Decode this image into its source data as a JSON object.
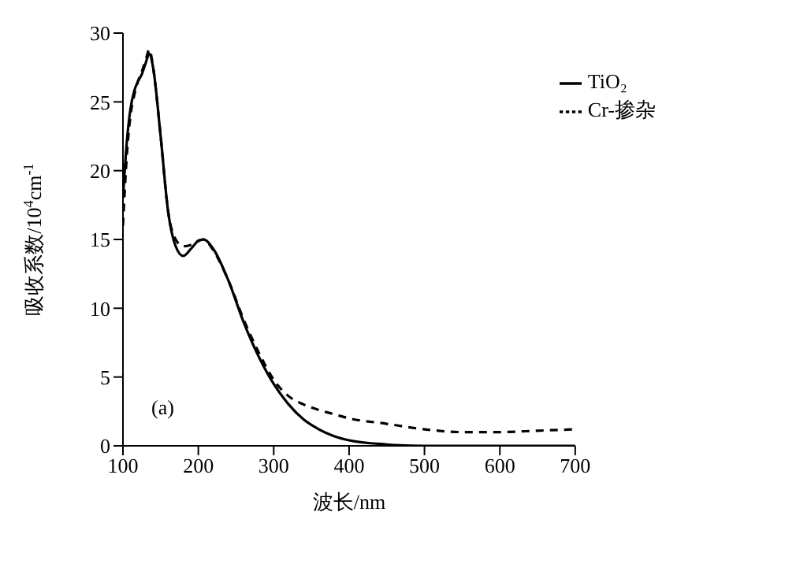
{
  "chart_data": {
    "type": "line",
    "xlabel": "波长/nm",
    "ylabel": "吸收系数/10$^{4}$cm$^{-1}$",
    "annotations": [
      "(a)"
    ],
    "x": [
      100,
      105,
      110,
      115,
      120,
      125,
      130,
      135,
      140,
      150,
      160,
      170,
      180,
      190,
      200,
      207,
      220,
      240,
      260,
      280,
      300,
      320,
      340,
      360,
      380,
      400,
      450,
      500,
      550,
      600,
      650,
      700
    ],
    "series": [
      {
        "name": "TiO₂",
        "color": "#000000",
        "line_style": "solid",
        "values": [
          18,
          22,
          24.5,
          25.8,
          26.5,
          27,
          27.8,
          28.5,
          27.5,
          22.5,
          17,
          14.5,
          13.8,
          14.3,
          14.9,
          15,
          14.3,
          12,
          9,
          6.5,
          4.5,
          3,
          1.9,
          1.2,
          0.7,
          0.4,
          0.1,
          0,
          0,
          0,
          0,
          0
        ]
      },
      {
        "name": "Cr-掺杂",
        "color": "#000000",
        "line_style": "dashed",
        "values": [
          16,
          21,
          24,
          25.5,
          26.5,
          27.2,
          28,
          28.8,
          27.5,
          22.5,
          17,
          15,
          14.5,
          14.6,
          14.9,
          15,
          14.2,
          12,
          9.2,
          6.8,
          4.8,
          3.6,
          3,
          2.6,
          2.3,
          2,
          1.6,
          1.2,
          1,
          1,
          1.1,
          1.2
        ]
      }
    ],
    "xlim": [
      100,
      700
    ],
    "xticks": [
      100,
      200,
      300,
      400,
      500,
      600,
      700
    ],
    "ylim": [
      0,
      30
    ],
    "yticks": [
      0,
      5,
      10,
      15,
      20,
      25,
      30
    ],
    "grid": false,
    "legend": "top right",
    "marker": "none"
  }
}
